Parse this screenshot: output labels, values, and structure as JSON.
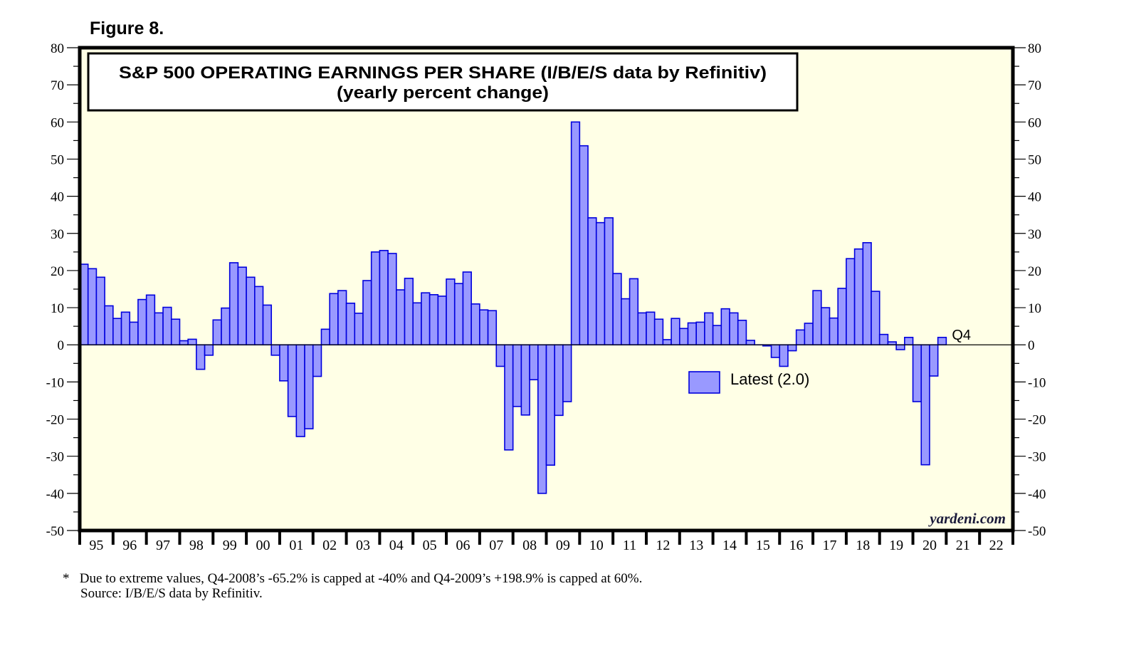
{
  "figure_label": "Figure 8.",
  "footnotes": {
    "star": "*",
    "note": "Due to extreme values, Q4-2008’s -65.2% is capped at -40% and Q4-2009’s +198.9% is capped at 60%.",
    "source": "Source: I/B/E/S data by Refinitiv."
  },
  "colors": {
    "plot_background": "#ffffe6",
    "bar_fill": "#9999ff",
    "bar_stroke": "#0000dd",
    "axis": "#000000"
  },
  "chart_data": {
    "type": "bar",
    "title": "S&P 500 OPERATING EARNINGS PER SHARE (I/B/E/S data by Refinitiv)",
    "subtitle": "(yearly percent change)",
    "xlabel": "",
    "ylabel": "",
    "ylim": [
      -50,
      80
    ],
    "y_ticks": [
      -50,
      -40,
      -30,
      -20,
      -10,
      0,
      10,
      20,
      30,
      40,
      50,
      60,
      70,
      80
    ],
    "y_minor_step": 5,
    "y_axis_sides": [
      "left",
      "right"
    ],
    "x_start_year": 1995,
    "x_end_year": 2022,
    "x_tick_labels": [
      "95",
      "96",
      "97",
      "98",
      "99",
      "00",
      "01",
      "02",
      "03",
      "04",
      "05",
      "06",
      "07",
      "08",
      "09",
      "10",
      "11",
      "12",
      "13",
      "14",
      "15",
      "16",
      "17",
      "18",
      "19",
      "20",
      "21",
      "22"
    ],
    "frequency": "quarterly",
    "grid": false,
    "zero_line": true,
    "series": [
      {
        "name": "S&P 500 operating EPS, yearly percent change",
        "start": "1995-Q1",
        "values": [
          21.7,
          20.5,
          18.2,
          10.5,
          7.1,
          8.8,
          6.1,
          12.2,
          13.4,
          8.6,
          10.1,
          6.9,
          1.1,
          1.5,
          -6.6,
          -2.8,
          6.7,
          9.9,
          22.1,
          20.9,
          18.2,
          15.7,
          10.7,
          -2.8,
          -9.7,
          -19.3,
          -24.7,
          -22.6,
          -8.5,
          4.2,
          13.8,
          14.6,
          11.2,
          8.5,
          17.3,
          25.0,
          25.4,
          24.6,
          14.8,
          17.9,
          11.3,
          14.0,
          13.5,
          13.1,
          17.7,
          16.5,
          19.6,
          11.0,
          9.4,
          9.2,
          -5.8,
          -28.3,
          -16.6,
          -18.9,
          -9.4,
          -40.0,
          -32.4,
          -19.0,
          -15.3,
          60.0,
          53.6,
          34.2,
          32.9,
          34.2,
          19.2,
          12.4,
          17.8,
          8.6,
          8.8,
          6.9,
          1.4,
          7.1,
          4.4,
          5.9,
          6.1,
          8.6,
          5.2,
          9.7,
          8.6,
          6.6,
          1.2,
          0.0,
          -0.3,
          -3.4,
          -5.8,
          -1.6,
          4.0,
          5.8,
          14.6,
          10.0,
          7.2,
          15.2,
          23.2,
          25.8,
          27.5,
          14.4,
          2.8,
          0.8,
          -1.3,
          2.0,
          -15.3,
          -32.3,
          -8.4,
          2.0
        ]
      }
    ],
    "annotations": [
      {
        "text": "Q4",
        "anchor": "last-bar"
      },
      {
        "text": "yardeni.com",
        "position": "bottom-right"
      }
    ],
    "legend": {
      "label": "Latest (2.0)",
      "placement": "center-right"
    }
  }
}
